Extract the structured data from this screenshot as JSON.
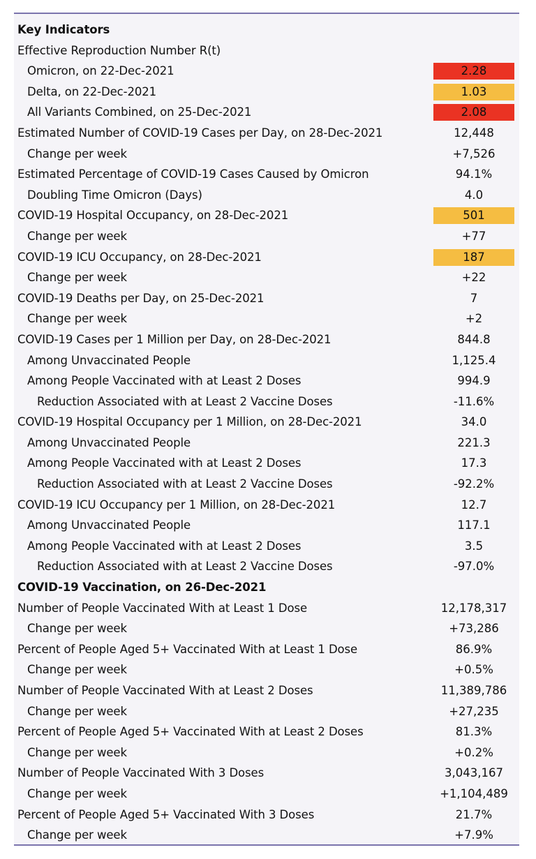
{
  "colors": {
    "border": "#7b74ad",
    "panel_background": "#f5f4f8",
    "red_flag": "#ea3323",
    "yellow_flag": "#f5bd42"
  },
  "rows": [
    {
      "label": "Key Indicators",
      "value": "",
      "indent": 0,
      "style": "header",
      "highlight": ""
    },
    {
      "label": "Effective Reproduction Number R(t)",
      "value": "",
      "indent": 0,
      "style": "",
      "highlight": ""
    },
    {
      "label": "Omicron, on 22-Dec-2021",
      "value": "2.28",
      "indent": 1,
      "style": "",
      "highlight": "red"
    },
    {
      "label": "Delta, on 22-Dec-2021",
      "value": "1.03",
      "indent": 1,
      "style": "",
      "highlight": "yellow"
    },
    {
      "label": "All Variants Combined, on 25-Dec-2021",
      "value": "2.08",
      "indent": 1,
      "style": "",
      "highlight": "red"
    },
    {
      "label": "Estimated Number of COVID-19 Cases per Day, on 28-Dec-2021",
      "value": "12,448",
      "indent": 0,
      "style": "",
      "highlight": ""
    },
    {
      "label": "Change per week",
      "value": "+7,526",
      "indent": 1,
      "style": "",
      "highlight": ""
    },
    {
      "label": "Estimated Percentage of COVID-19 Cases Caused by Omicron",
      "value": "94.1%",
      "indent": 0,
      "style": "",
      "highlight": ""
    },
    {
      "label": "Doubling Time Omicron (Days)",
      "value": "4.0",
      "indent": 1,
      "style": "",
      "highlight": ""
    },
    {
      "label": "COVID-19 Hospital Occupancy, on 28-Dec-2021",
      "value": "501",
      "indent": 0,
      "style": "",
      "highlight": "yellow"
    },
    {
      "label": "Change per week",
      "value": "+77",
      "indent": 1,
      "style": "",
      "highlight": ""
    },
    {
      "label": "COVID-19 ICU Occupancy, on 28-Dec-2021",
      "value": "187",
      "indent": 0,
      "style": "",
      "highlight": "yellow"
    },
    {
      "label": "Change per week",
      "value": "+22",
      "indent": 1,
      "style": "",
      "highlight": ""
    },
    {
      "label": "COVID-19 Deaths per Day, on 25-Dec-2021",
      "value": "7",
      "indent": 0,
      "style": "",
      "highlight": ""
    },
    {
      "label": "Change per week",
      "value": "+2",
      "indent": 1,
      "style": "",
      "highlight": ""
    },
    {
      "label": "COVID-19 Cases per 1 Million per Day, on 28-Dec-2021",
      "value": "844.8",
      "indent": 0,
      "style": "",
      "highlight": ""
    },
    {
      "label": "Among Unvaccinated People",
      "value": "1,125.4",
      "indent": 1,
      "style": "",
      "highlight": ""
    },
    {
      "label": "Among People Vaccinated with at Least 2 Doses",
      "value": "994.9",
      "indent": 1,
      "style": "",
      "highlight": ""
    },
    {
      "label": "Reduction Associated with at Least 2 Vaccine Doses",
      "value": "-11.6%",
      "indent": 2,
      "style": "",
      "highlight": ""
    },
    {
      "label": "COVID-19 Hospital Occupancy per 1 Million, on 28-Dec-2021",
      "value": "34.0",
      "indent": 0,
      "style": "",
      "highlight": ""
    },
    {
      "label": "Among Unvaccinated People",
      "value": "221.3",
      "indent": 1,
      "style": "",
      "highlight": ""
    },
    {
      "label": "Among People Vaccinated with at Least 2 Doses",
      "value": "17.3",
      "indent": 1,
      "style": "",
      "highlight": ""
    },
    {
      "label": "Reduction Associated with at Least 2 Vaccine Doses",
      "value": "-92.2%",
      "indent": 2,
      "style": "",
      "highlight": ""
    },
    {
      "label": "COVID-19 ICU Occupancy per 1 Million, on 28-Dec-2021",
      "value": "12.7",
      "indent": 0,
      "style": "",
      "highlight": ""
    },
    {
      "label": "Among Unvaccinated People",
      "value": "117.1",
      "indent": 1,
      "style": "",
      "highlight": ""
    },
    {
      "label": "Among People Vaccinated with at Least 2 Doses",
      "value": "3.5",
      "indent": 1,
      "style": "",
      "highlight": ""
    },
    {
      "label": "Reduction Associated with at Least 2 Vaccine Doses",
      "value": "-97.0%",
      "indent": 2,
      "style": "",
      "highlight": ""
    },
    {
      "label": "COVID-19 Vaccination, on 26-Dec-2021",
      "value": "",
      "indent": 0,
      "style": "header",
      "highlight": ""
    },
    {
      "label": "Number of People Vaccinated With at Least 1 Dose",
      "value": "12,178,317",
      "indent": 0,
      "style": "",
      "highlight": ""
    },
    {
      "label": "Change per week",
      "value": "+73,286",
      "indent": 1,
      "style": "",
      "highlight": ""
    },
    {
      "label": "Percent of People Aged 5+ Vaccinated With at Least 1 Dose",
      "value": "86.9%",
      "indent": 0,
      "style": "",
      "highlight": ""
    },
    {
      "label": "Change per week",
      "value": "+0.5%",
      "indent": 1,
      "style": "",
      "highlight": ""
    },
    {
      "label": "Number of People Vaccinated With at Least 2 Doses",
      "value": "11,389,786",
      "indent": 0,
      "style": "",
      "highlight": ""
    },
    {
      "label": "Change per week",
      "value": "+27,235",
      "indent": 1,
      "style": "",
      "highlight": ""
    },
    {
      "label": "Percent of People Aged 5+ Vaccinated With at Least 2 Doses",
      "value": "81.3%",
      "indent": 0,
      "style": "",
      "highlight": ""
    },
    {
      "label": "Change per week",
      "value": "+0.2%",
      "indent": 1,
      "style": "",
      "highlight": ""
    },
    {
      "label": "Number of People Vaccinated With 3 Doses",
      "value": "3,043,167",
      "indent": 0,
      "style": "",
      "highlight": ""
    },
    {
      "label": "Change per week",
      "value": "+1,104,489",
      "indent": 1,
      "style": "",
      "highlight": ""
    },
    {
      "label": "Percent of People Aged 5+ Vaccinated With 3 Doses",
      "value": "21.7%",
      "indent": 0,
      "style": "",
      "highlight": ""
    },
    {
      "label": "Change per week",
      "value": "+7.9%",
      "indent": 1,
      "style": "",
      "highlight": ""
    }
  ]
}
